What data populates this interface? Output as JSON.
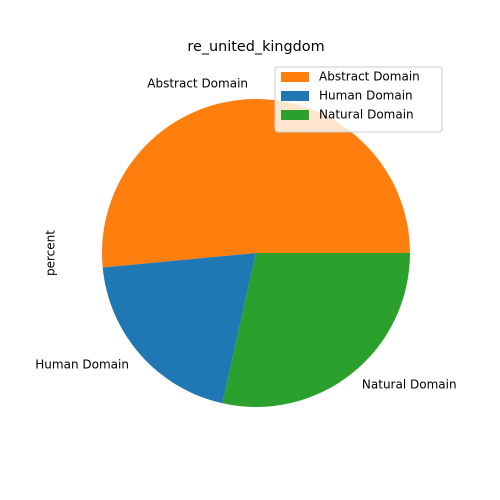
{
  "chart_data": {
    "type": "pie",
    "title": "re_united_kingdom",
    "ylabel": "percent",
    "slices": [
      {
        "label": "Abstract Domain",
        "value": 51.5,
        "color": "#ff7f0e"
      },
      {
        "label": "Human Domain",
        "value": 20.0,
        "color": "#1f77b4"
      },
      {
        "label": "Natural Domain",
        "value": 28.5,
        "color": "#2ca02c"
      }
    ],
    "legend": {
      "placement": "top-right",
      "entries": [
        "Abstract Domain",
        "Human Domain",
        "Natural Domain"
      ]
    }
  }
}
